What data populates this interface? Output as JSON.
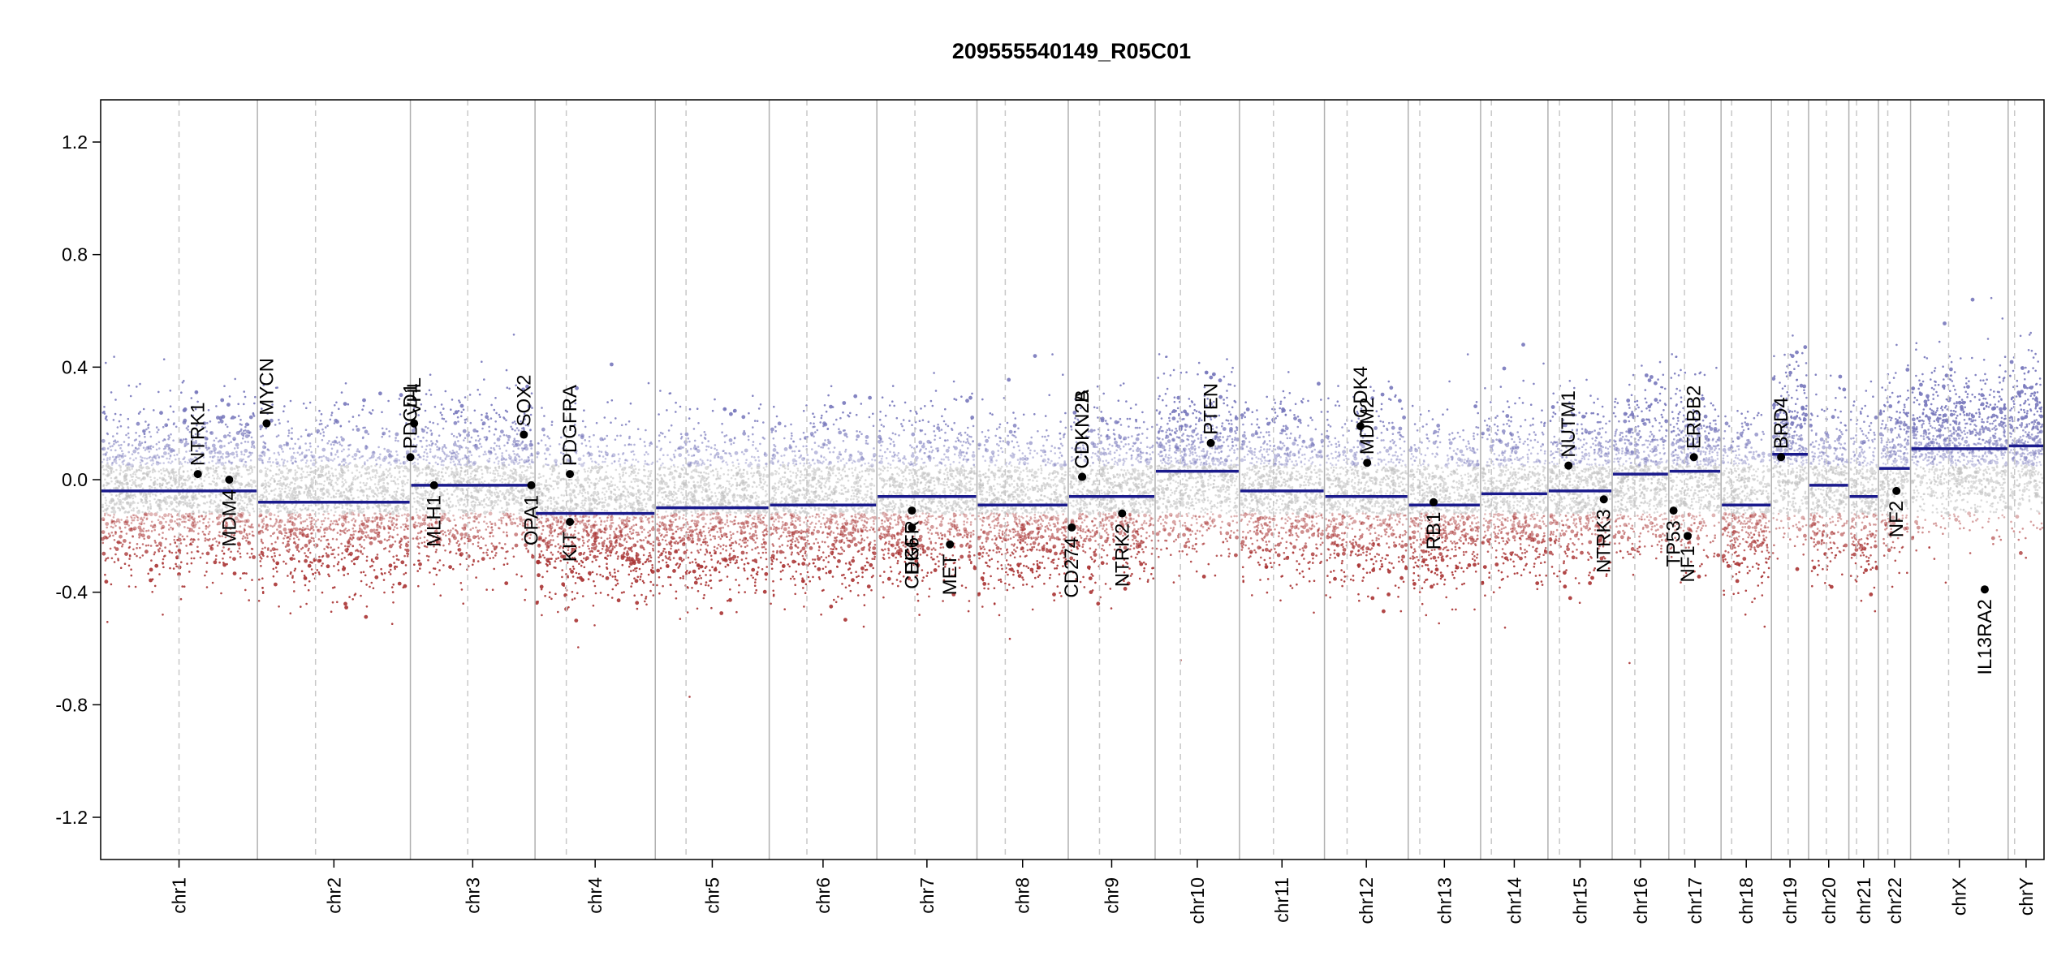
{
  "chart_data": {
    "type": "scatter",
    "title": "209555540149_R05C01",
    "xlabel": "",
    "ylabel": "",
    "ylim": [
      -1.35,
      1.35
    ],
    "y_ticks": [
      -1.2,
      -0.8,
      -0.4,
      0.0,
      0.4,
      0.8,
      1.2
    ],
    "y_tick_labels": [
      "-1.2",
      "-0.8",
      "-0.4",
      "0.0",
      "0.4",
      "0.8",
      "1.2"
    ],
    "colors": {
      "segment": "#1a1a8c",
      "gain": "#7777bb",
      "loss": "#a83232",
      "neutral": "#bdbdbd",
      "gene_point": "#000000",
      "chrom_border": "#b0b0b0",
      "centromere": "#c8c8c8"
    },
    "chromosomes": [
      {
        "name": "chr1",
        "len": 249,
        "cen": 0.5
      },
      {
        "name": "chr2",
        "len": 243,
        "cen": 0.38
      },
      {
        "name": "chr3",
        "len": 198,
        "cen": 0.46
      },
      {
        "name": "chr4",
        "len": 191,
        "cen": 0.26
      },
      {
        "name": "chr5",
        "len": 181,
        "cen": 0.27
      },
      {
        "name": "chr6",
        "len": 171,
        "cen": 0.35
      },
      {
        "name": "chr7",
        "len": 159,
        "cen": 0.38
      },
      {
        "name": "chr8",
        "len": 145,
        "cen": 0.31
      },
      {
        "name": "chr9",
        "len": 138,
        "cen": 0.36
      },
      {
        "name": "chr10",
        "len": 134,
        "cen": 0.3
      },
      {
        "name": "chr11",
        "len": 135,
        "cen": 0.4
      },
      {
        "name": "chr12",
        "len": 133,
        "cen": 0.27
      },
      {
        "name": "chr13",
        "len": 115,
        "cen": 0.16
      },
      {
        "name": "chr14",
        "len": 107,
        "cen": 0.16
      },
      {
        "name": "chr15",
        "len": 102,
        "cen": 0.18
      },
      {
        "name": "chr16",
        "len": 90,
        "cen": 0.4
      },
      {
        "name": "chr17",
        "len": 83,
        "cen": 0.3
      },
      {
        "name": "chr18",
        "len": 80,
        "cen": 0.21
      },
      {
        "name": "chr19",
        "len": 59,
        "cen": 0.45
      },
      {
        "name": "chr20",
        "len": 64,
        "cen": 0.44
      },
      {
        "name": "chr21",
        "len": 47,
        "cen": 0.26
      },
      {
        "name": "chr22",
        "len": 51,
        "cen": 0.29
      },
      {
        "name": "chrX",
        "len": 155,
        "cen": 0.39
      },
      {
        "name": "chrY",
        "len": 57,
        "cen": 0.18
      }
    ],
    "segments": [
      {
        "chrom": "chr1",
        "value": -0.04
      },
      {
        "chrom": "chr2",
        "value": -0.08
      },
      {
        "chrom": "chr3",
        "value": -0.02
      },
      {
        "chrom": "chr4",
        "value": -0.12
      },
      {
        "chrom": "chr5",
        "value": -0.1
      },
      {
        "chrom": "chr6",
        "value": -0.09
      },
      {
        "chrom": "chr7",
        "value": -0.06
      },
      {
        "chrom": "chr8",
        "value": -0.09
      },
      {
        "chrom": "chr9",
        "value": -0.06
      },
      {
        "chrom": "chr10",
        "value": 0.03
      },
      {
        "chrom": "chr11",
        "value": -0.04
      },
      {
        "chrom": "chr12",
        "value": -0.06
      },
      {
        "chrom": "chr13",
        "value": -0.09
      },
      {
        "chrom": "chr14",
        "value": -0.05
      },
      {
        "chrom": "chr15",
        "value": -0.04
      },
      {
        "chrom": "chr16",
        "value": 0.02
      },
      {
        "chrom": "chr17",
        "value": 0.03
      },
      {
        "chrom": "chr18",
        "value": -0.09
      },
      {
        "chrom": "chr19",
        "value": 0.09
      },
      {
        "chrom": "chr20",
        "value": -0.02
      },
      {
        "chrom": "chr21",
        "value": -0.06
      },
      {
        "chrom": "chr22",
        "value": 0.04
      },
      {
        "chrom": "chrX",
        "value": 0.11
      },
      {
        "chrom": "chrY",
        "value": 0.12
      }
    ],
    "genes": [
      {
        "name": "NTRK1",
        "chrom": "chr1",
        "pos": 0.62,
        "value": 0.02,
        "label_side": "above"
      },
      {
        "name": "MDM4",
        "chrom": "chr1",
        "pos": 0.82,
        "value": 0.0,
        "label_side": "below"
      },
      {
        "name": "MYCN",
        "chrom": "chr2",
        "pos": 0.06,
        "value": 0.2,
        "label_side": "above"
      },
      {
        "name": "PDCD1",
        "chrom": "chr2",
        "pos": 1.0,
        "value": 0.08,
        "label_side": "above"
      },
      {
        "name": "VHL",
        "chrom": "chr3",
        "pos": 0.03,
        "value": 0.2,
        "label_side": "above"
      },
      {
        "name": "MLH1",
        "chrom": "chr3",
        "pos": 0.19,
        "value": -0.02,
        "label_side": "below"
      },
      {
        "name": "SOX2",
        "chrom": "chr3",
        "pos": 0.91,
        "value": 0.16,
        "label_side": "above"
      },
      {
        "name": "OPA1",
        "chrom": "chr3",
        "pos": 0.97,
        "value": -0.02,
        "label_side": "below"
      },
      {
        "name": "PDGFRA",
        "chrom": "chr4",
        "pos": 0.29,
        "value": 0.02,
        "label_side": "above"
      },
      {
        "name": "KIT",
        "chrom": "chr4",
        "pos": 0.29,
        "value": -0.15,
        "label_side": "below"
      },
      {
        "name": "EGFR",
        "chrom": "chr7",
        "pos": 0.35,
        "value": -0.11,
        "label_side": "below"
      },
      {
        "name": "CDK6",
        "chrom": "chr7",
        "pos": 0.35,
        "value": -0.17,
        "label_side": "below"
      },
      {
        "name": "MET",
        "chrom": "chr7",
        "pos": 0.73,
        "value": -0.23,
        "label_side": "below"
      },
      {
        "name": "CD274",
        "chrom": "chr9",
        "pos": 0.04,
        "value": -0.17,
        "label_side": "below"
      },
      {
        "name": "CDKN2A",
        "chrom": "chr9",
        "pos": 0.16,
        "value": 0.01,
        "label_side": "above"
      },
      {
        "name": "CDKN2B",
        "chrom": "chr9",
        "pos": 0.16,
        "value": 0.01,
        "label_side": "above"
      },
      {
        "name": "NTRK2",
        "chrom": "chr9",
        "pos": 0.62,
        "value": -0.12,
        "label_side": "below"
      },
      {
        "name": "PTEN",
        "chrom": "chr10",
        "pos": 0.66,
        "value": 0.13,
        "label_side": "above"
      },
      {
        "name": "CDK4",
        "chrom": "chr12",
        "pos": 0.43,
        "value": 0.19,
        "label_side": "above"
      },
      {
        "name": "MDM2",
        "chrom": "chr12",
        "pos": 0.51,
        "value": 0.06,
        "label_side": "above"
      },
      {
        "name": "RB1",
        "chrom": "chr13",
        "pos": 0.35,
        "value": -0.08,
        "label_side": "below"
      },
      {
        "name": "NUTM1",
        "chrom": "chr15",
        "pos": 0.32,
        "value": 0.05,
        "label_side": "above"
      },
      {
        "name": "NTRK3",
        "chrom": "chr15",
        "pos": 0.87,
        "value": -0.07,
        "label_side": "below"
      },
      {
        "name": "TP53",
        "chrom": "chr17",
        "pos": 0.09,
        "value": -0.11,
        "label_side": "below"
      },
      {
        "name": "NF1",
        "chrom": "chr17",
        "pos": 0.36,
        "value": -0.2,
        "label_side": "below"
      },
      {
        "name": "ERBB2",
        "chrom": "chr17",
        "pos": 0.48,
        "value": 0.08,
        "label_side": "above"
      },
      {
        "name": "BRD4",
        "chrom": "chr19",
        "pos": 0.26,
        "value": 0.08,
        "label_side": "above"
      },
      {
        "name": "NF2",
        "chrom": "chr22",
        "pos": 0.56,
        "value": -0.04,
        "label_side": "below"
      },
      {
        "name": "IL13RA2",
        "chrom": "chrX",
        "pos": 0.76,
        "value": -0.39,
        "label_side": "below"
      }
    ]
  }
}
